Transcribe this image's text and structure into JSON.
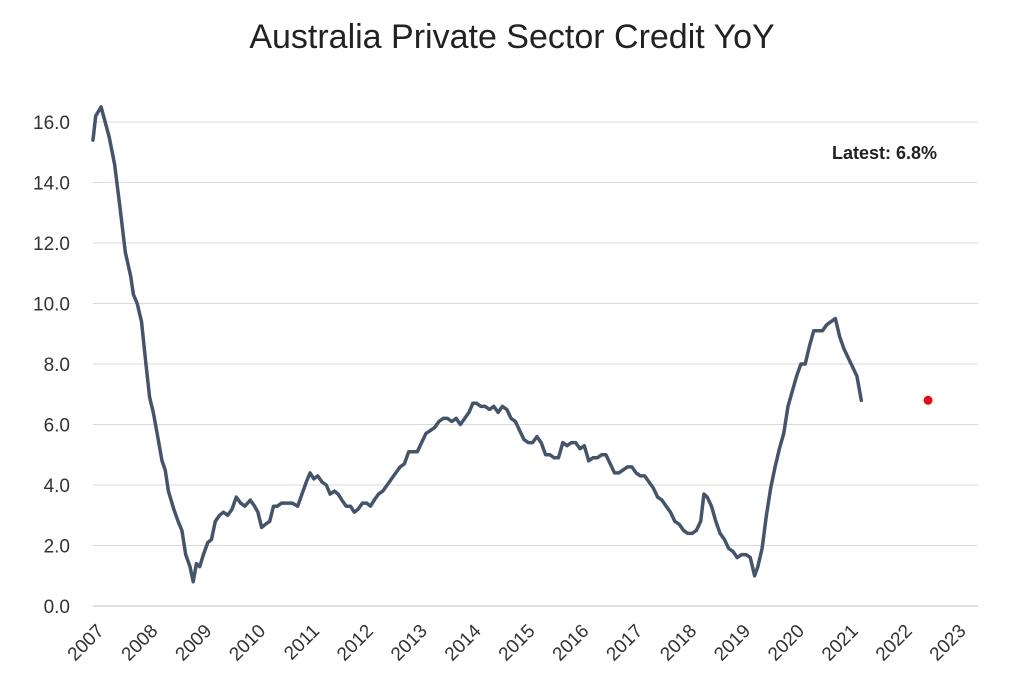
{
  "chart_data": {
    "type": "line",
    "title": "Australia Private Sector Credit YoY",
    "xlabel": "",
    "ylabel": "",
    "ylim": [
      0,
      16
    ],
    "xlim": [
      2007,
      2023
    ],
    "y_ticks": [
      "0.0",
      "2.0",
      "4.0",
      "6.0",
      "8.0",
      "10.0",
      "12.0",
      "14.0",
      "16.0"
    ],
    "x_ticks": [
      "2007",
      "2008",
      "2009",
      "2010",
      "2011",
      "2012",
      "2013",
      "2014",
      "2015",
      "2016",
      "2017",
      "2018",
      "2019",
      "2020",
      "2021",
      "2022",
      "2023"
    ],
    "grid": "horizontal",
    "annotation": "Latest: 6.8%",
    "latest_marker": {
      "x": 2022.5,
      "y": 6.8,
      "color": "#e01010"
    },
    "line_color": "#44546a",
    "series": [
      {
        "points": [
          [
            2007.0,
            15.4
          ],
          [
            2007.05,
            16.2
          ],
          [
            2007.15,
            16.5
          ],
          [
            2007.3,
            15.5
          ],
          [
            2007.4,
            14.6
          ],
          [
            2007.5,
            13.2
          ],
          [
            2007.6,
            11.7
          ],
          [
            2007.7,
            10.9
          ],
          [
            2007.75,
            10.3
          ],
          [
            2007.82,
            10.0
          ],
          [
            2007.9,
            9.4
          ],
          [
            2007.97,
            8.2
          ],
          [
            2008.05,
            6.9
          ],
          [
            2008.12,
            6.4
          ],
          [
            2008.2,
            5.6
          ],
          [
            2008.28,
            4.8
          ],
          [
            2008.34,
            4.5
          ],
          [
            2008.4,
            3.8
          ],
          [
            2008.5,
            3.2
          ],
          [
            2008.58,
            2.8
          ],
          [
            2008.65,
            2.5
          ],
          [
            2008.72,
            1.7
          ],
          [
            2008.8,
            1.3
          ],
          [
            2008.86,
            0.8
          ],
          [
            2008.92,
            1.4
          ],
          [
            2008.98,
            1.3
          ],
          [
            2009.05,
            1.7
          ],
          [
            2009.13,
            2.1
          ],
          [
            2009.2,
            2.2
          ],
          [
            2009.27,
            2.8
          ],
          [
            2009.35,
            3.0
          ],
          [
            2009.42,
            3.1
          ],
          [
            2009.5,
            3.0
          ],
          [
            2009.58,
            3.2
          ],
          [
            2009.66,
            3.6
          ],
          [
            2009.74,
            3.4
          ],
          [
            2009.82,
            3.3
          ],
          [
            2009.92,
            3.5
          ],
          [
            2010.0,
            3.3
          ],
          [
            2010.06,
            3.1
          ],
          [
            2010.13,
            2.6
          ],
          [
            2010.2,
            2.7
          ],
          [
            2010.28,
            2.8
          ],
          [
            2010.35,
            3.3
          ],
          [
            2010.42,
            3.3
          ],
          [
            2010.5,
            3.4
          ],
          [
            2010.6,
            3.4
          ],
          [
            2010.7,
            3.4
          ],
          [
            2010.8,
            3.3
          ],
          [
            2010.88,
            3.7
          ],
          [
            2010.96,
            4.1
          ],
          [
            2011.03,
            4.4
          ],
          [
            2011.1,
            4.2
          ],
          [
            2011.17,
            4.3
          ],
          [
            2011.25,
            4.1
          ],
          [
            2011.33,
            4.0
          ],
          [
            2011.4,
            3.7
          ],
          [
            2011.48,
            3.8
          ],
          [
            2011.55,
            3.7
          ],
          [
            2011.62,
            3.5
          ],
          [
            2011.7,
            3.3
          ],
          [
            2011.78,
            3.3
          ],
          [
            2011.85,
            3.1
          ],
          [
            2011.92,
            3.2
          ],
          [
            2012.0,
            3.4
          ],
          [
            2012.08,
            3.4
          ],
          [
            2012.15,
            3.3
          ],
          [
            2012.22,
            3.5
          ],
          [
            2012.3,
            3.7
          ],
          [
            2012.38,
            3.8
          ],
          [
            2012.46,
            4.0
          ],
          [
            2012.54,
            4.2
          ],
          [
            2012.62,
            4.4
          ],
          [
            2012.7,
            4.6
          ],
          [
            2012.78,
            4.7
          ],
          [
            2012.86,
            5.1
          ],
          [
            2012.94,
            5.1
          ],
          [
            2013.02,
            5.1
          ],
          [
            2013.1,
            5.4
          ],
          [
            2013.18,
            5.7
          ],
          [
            2013.26,
            5.8
          ],
          [
            2013.34,
            5.9
          ],
          [
            2013.42,
            6.1
          ],
          [
            2013.5,
            6.2
          ],
          [
            2013.58,
            6.2
          ],
          [
            2013.66,
            6.1
          ],
          [
            2013.74,
            6.2
          ],
          [
            2013.82,
            6.0
          ],
          [
            2013.9,
            6.2
          ],
          [
            2013.98,
            6.4
          ],
          [
            2014.05,
            6.7
          ],
          [
            2014.12,
            6.7
          ],
          [
            2014.2,
            6.6
          ],
          [
            2014.28,
            6.6
          ],
          [
            2014.36,
            6.5
          ],
          [
            2014.44,
            6.6
          ],
          [
            2014.52,
            6.4
          ],
          [
            2014.6,
            6.6
          ],
          [
            2014.68,
            6.5
          ],
          [
            2014.76,
            6.2
          ],
          [
            2014.84,
            6.1
          ],
          [
            2014.92,
            5.8
          ],
          [
            2015.0,
            5.5
          ],
          [
            2015.08,
            5.4
          ],
          [
            2015.16,
            5.4
          ],
          [
            2015.24,
            5.6
          ],
          [
            2015.32,
            5.4
          ],
          [
            2015.4,
            5.0
          ],
          [
            2015.48,
            5.0
          ],
          [
            2015.56,
            4.9
          ],
          [
            2015.64,
            4.9
          ],
          [
            2015.72,
            5.4
          ],
          [
            2015.8,
            5.3
          ],
          [
            2015.88,
            5.4
          ],
          [
            2015.96,
            5.4
          ],
          [
            2016.04,
            5.2
          ],
          [
            2016.12,
            5.3
          ],
          [
            2016.2,
            4.8
          ],
          [
            2016.28,
            4.9
          ],
          [
            2016.36,
            4.9
          ],
          [
            2016.44,
            5.0
          ],
          [
            2016.52,
            5.0
          ],
          [
            2016.6,
            4.7
          ],
          [
            2016.68,
            4.4
          ],
          [
            2016.76,
            4.4
          ],
          [
            2016.84,
            4.5
          ],
          [
            2016.92,
            4.6
          ],
          [
            2017.0,
            4.6
          ],
          [
            2017.08,
            4.4
          ],
          [
            2017.16,
            4.3
          ],
          [
            2017.24,
            4.3
          ],
          [
            2017.32,
            4.1
          ],
          [
            2017.4,
            3.9
          ],
          [
            2017.48,
            3.6
          ],
          [
            2017.56,
            3.5
          ],
          [
            2017.64,
            3.3
          ],
          [
            2017.72,
            3.1
          ],
          [
            2017.8,
            2.8
          ],
          [
            2017.88,
            2.7
          ],
          [
            2017.96,
            2.5
          ],
          [
            2018.04,
            2.4
          ],
          [
            2018.12,
            2.4
          ],
          [
            2018.2,
            2.5
          ],
          [
            2018.28,
            2.8
          ],
          [
            2018.34,
            3.7
          ],
          [
            2018.4,
            3.6
          ],
          [
            2018.48,
            3.3
          ],
          [
            2018.56,
            2.8
          ],
          [
            2018.64,
            2.4
          ],
          [
            2018.72,
            2.2
          ],
          [
            2018.8,
            1.9
          ],
          [
            2018.88,
            1.8
          ],
          [
            2018.96,
            1.6
          ],
          [
            2019.04,
            1.7
          ],
          [
            2019.12,
            1.7
          ],
          [
            2019.2,
            1.6
          ],
          [
            2019.28,
            1.0
          ],
          [
            2019.34,
            1.3
          ],
          [
            2019.42,
            1.9
          ],
          [
            2019.5,
            3.0
          ],
          [
            2019.58,
            3.9
          ],
          [
            2019.66,
            4.6
          ],
          [
            2019.74,
            5.2
          ],
          [
            2019.82,
            5.7
          ],
          [
            2019.9,
            6.6
          ],
          [
            2019.98,
            7.1
          ],
          [
            2020.06,
            7.6
          ],
          [
            2020.14,
            8.0
          ],
          [
            2020.22,
            8.0
          ],
          [
            2020.3,
            8.6
          ],
          [
            2020.38,
            9.1
          ],
          [
            2020.46,
            9.1
          ],
          [
            2020.54,
            9.1
          ],
          [
            2020.62,
            9.3
          ],
          [
            2020.7,
            9.4
          ],
          [
            2020.78,
            9.5
          ],
          [
            2020.86,
            8.9
          ],
          [
            2020.94,
            8.5
          ],
          [
            2021.02,
            8.2
          ],
          [
            2021.1,
            7.9
          ],
          [
            2021.18,
            7.6
          ],
          [
            2021.26,
            6.8
          ]
        ]
      }
    ]
  }
}
